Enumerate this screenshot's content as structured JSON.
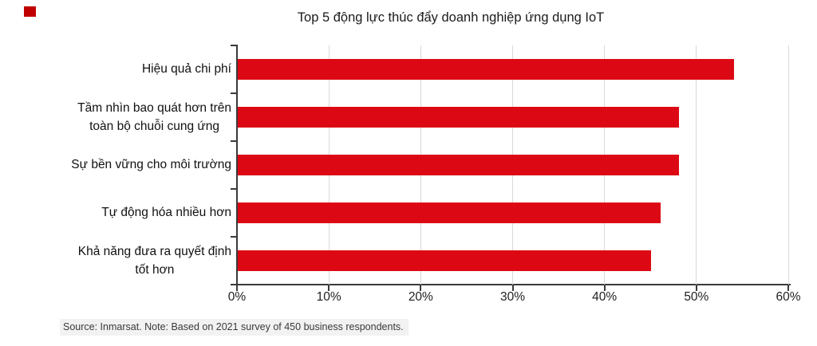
{
  "decorations": {
    "corner_marker_color": "#c00000"
  },
  "chart_data": {
    "type": "bar",
    "orientation": "horizontal",
    "title": "Top 5 động lực thúc đẩy doanh nghiệp ứng dụng IoT",
    "categories": [
      "Hiệu quả chi phí",
      "Tầm nhìn bao quát hơn trên toàn bộ chuỗi cung ứng",
      "Sự bền vững cho môi trường",
      "Tự động hóa nhiều hơn",
      "Khả năng đưa ra quyết định tốt hơn"
    ],
    "label_lines": [
      [
        "Hiệu quả chi phí"
      ],
      [
        "Tầm nhìn bao quát hơn trên",
        "toàn bộ chuỗi cung ứng"
      ],
      [
        "Sự bền vững cho môi trường"
      ],
      [
        "Tự động hóa nhiều hơn"
      ],
      [
        "Khả năng đưa ra quyết định",
        "tốt hơn"
      ]
    ],
    "values": [
      54,
      48,
      48,
      46,
      45
    ],
    "unit": "%",
    "xlim": [
      0,
      60
    ],
    "tick_values": [
      0,
      10,
      20,
      30,
      40,
      50,
      60
    ],
    "x_tick_labels": [
      "0%",
      "10%",
      "20%",
      "30%",
      "40%",
      "50%",
      "60%"
    ],
    "bar_color": "#dc0914",
    "gridlines": true,
    "legend_position": "none"
  },
  "footer": {
    "source_note": "Source: Inmarsat. Note: Based on 2021 survey of 450 business respondents."
  }
}
